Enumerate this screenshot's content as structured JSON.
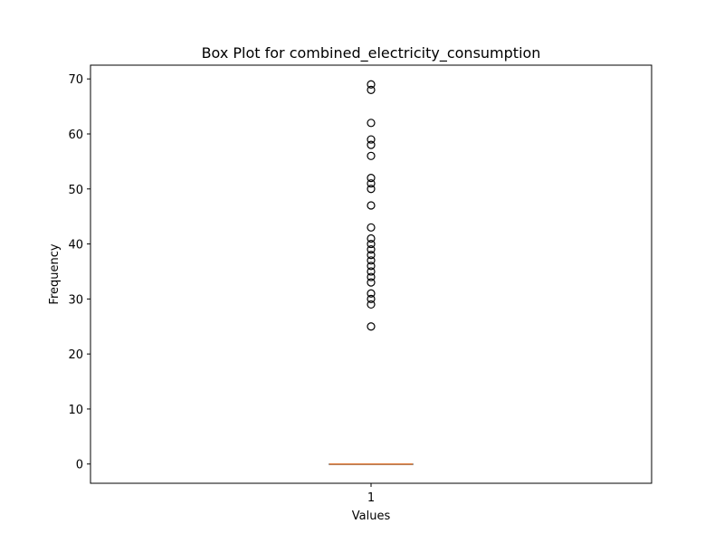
{
  "chart_data": {
    "type": "box",
    "title": "Box Plot for combined_electricity_consumption",
    "xlabel": "Values",
    "ylabel": "Frequency",
    "categories": [
      "1"
    ],
    "ylim": [
      -3.5,
      72.5
    ],
    "yticks": [
      0,
      10,
      20,
      30,
      40,
      50,
      60,
      70
    ],
    "grid": false,
    "box": {
      "category": "1",
      "whisker_low": 0,
      "q1": 0,
      "median": 0,
      "q3": 0,
      "whisker_high": 0,
      "box_color": "#000000",
      "median_color": "#e07b39"
    },
    "outliers": [
      25,
      29,
      30,
      31,
      33,
      34,
      35,
      36,
      37,
      38,
      39,
      40,
      41,
      43,
      47,
      50,
      51,
      52,
      56,
      58,
      59,
      62,
      68,
      69
    ]
  }
}
